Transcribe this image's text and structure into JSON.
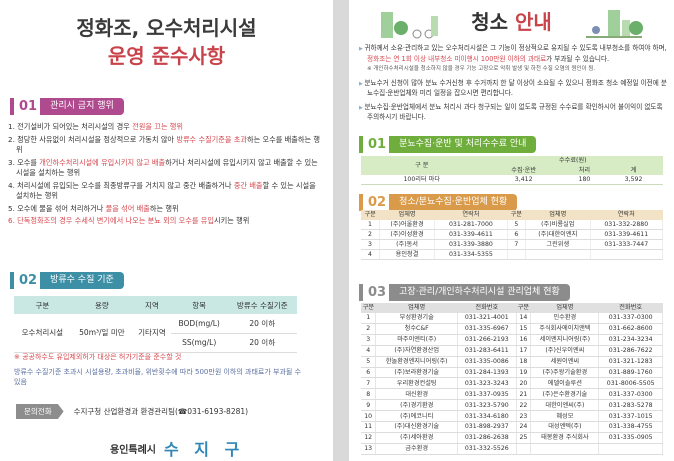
{
  "left": {
    "title_line1": "정화조, 오수처리시설",
    "title_line2": "운영 준수사항",
    "section1": {
      "num": "01",
      "label": "관리시 금지 행위",
      "color": "#b04a8f",
      "items": [
        [
          {
            "t": "1. 전기설비가 되어있는 처리시설의 경우 "
          },
          {
            "t": "전원을 끄는 행위",
            "red": true
          }
        ],
        [
          {
            "t": "2. 정당한 사유없이 처리시설을 정상적으로 가동치 않아 "
          },
          {
            "t": "방류수 수질기준을 초과",
            "red": true
          },
          {
            "t": "하는 오수를 배출하는 행위"
          }
        ],
        [
          {
            "t": "3. 오수를 "
          },
          {
            "t": "개인하수처리시설에 유입시키지 않고 배출",
            "red": true
          },
          {
            "t": "하거나 처리시설에 유입시키지 않고 배출할 수 있는 시설을 설치하는 행위"
          }
        ],
        [
          {
            "t": "4. 처리시설에 유입되는 오수를 최종방류구를 거치지 않고 중간 배출하거나 "
          },
          {
            "t": "중간 배출",
            "red": true
          },
          {
            "t": "할 수 있는 시설을 설치하는 행위"
          }
        ],
        [
          {
            "t": "5. 오수에 물을 섞어 처리하거나 "
          },
          {
            "t": "물을 섞어 배출",
            "red": true
          },
          {
            "t": "하는 행위"
          }
        ],
        [
          {
            "t": "6. 단독정화조의 경우 수세식 변기에서 나오는 분뇨 외의 오수를 유입",
            "red": true
          },
          {
            "t": "시키는 행위"
          }
        ]
      ]
    },
    "section2": {
      "num": "02",
      "label": "방류수 수질 기준",
      "color": "#3d8fa6",
      "headers": [
        "구분",
        "용량",
        "지역",
        "항목",
        "방류수 수질기준"
      ],
      "facility": "오수처리시설",
      "capacity": "50m³/일 미만",
      "region": "기타지역",
      "rows": [
        [
          "BOD(mg/L)",
          "20 이하"
        ],
        [
          "SS(mg/L)",
          "20 이하"
        ]
      ]
    },
    "note1": "※ 공공하수도 유입제외허가 대상은 허가기준을 준수할 것",
    "note2": "방류수 수질기준 초과시 시설용량, 초과비율, 위반횟수에 따라 500만원 이하의 과태료가 부과될 수 있음",
    "contact_label": "문의전화",
    "contact_text": "수지구청 산업환경과 환경관리팀(☎031-6193-8281)",
    "logo_city": "용인특례시",
    "logo_district": "수 지 구"
  },
  "right": {
    "title_a": "청소",
    "title_b": "안내",
    "bullets": [
      {
        "pre": "귀하께서 소유·관리하고 있는 오수처리시설은 그 기능이 정상적으로 유지될 수 있도록 내부청소를 하여야 하며, ",
        "red": "정화조는 연 1회 이상 내부청소 미이행시 100만원 이하의 과태료",
        "post": "가 부과될 수 있습니다.",
        "sub": "※ 개인하수처리시설을 청소하지 않을 경우 기능 고장으로 악취 발생 및 하천 수질 오염의 원인이 됨."
      },
      {
        "pre": "분뇨수거 신청이 많아 분뇨 수거신청 후 수거까지 한 달 이상이 소요될 수 있으니 정화조 청소 예정일 이전에 분뇨수집·운반업체와 미리 일정을 잡으시면 편리합니다."
      },
      {
        "pre": "분뇨수집·운반업체에서 분뇨 처리시 과다 청구되는 일이 없도록 규정된 수수료를 확인하시어 불이익이 없도록 주의하시기 바랍니다."
      }
    ],
    "s1": {
      "num": "01",
      "label": "분뇨수집·운반 및 처리수수료 안내",
      "color": "#6fae3c",
      "h_type": "구 분",
      "h_fee": "수수료(원)",
      "h_sub": [
        "수집·운반",
        "처리",
        "계"
      ],
      "row": [
        "100리터 마다",
        "3,412",
        "180",
        "3,592"
      ]
    },
    "s2": {
      "num": "02",
      "label": "청소/분뇨수집·운반업체 현황",
      "color": "#d99a4a",
      "headers": [
        "구분",
        "업체명",
        "연락처",
        "구분",
        "업체명",
        "연락처"
      ],
      "rows": [
        [
          "1",
          "(주)어울환경",
          "031-281-7000",
          "5",
          "(주)비룡실업",
          "031-332-2880"
        ],
        [
          "2",
          "(주)이성환경",
          "031-339-4611",
          "6",
          "(주)대한이엔지",
          "031-339-4611"
        ],
        [
          "3",
          "(주)동서",
          "031-339-3880",
          "7",
          "그린위생",
          "031-333-7447"
        ],
        [
          "4",
          "용인청결",
          "031-334-5355",
          "",
          "",
          ""
        ]
      ]
    },
    "s3": {
      "num": "03",
      "label": "고장·관리/개인하수처리시설 관리업체 현황",
      "color": "#8c8c8c",
      "headers": [
        "구분",
        "업체명",
        "전화번호",
        "구분",
        "업체명",
        "전화번호"
      ],
      "rows": [
        [
          "1",
          "부성환경기술",
          "031-321-4001",
          "14",
          "인수환경",
          "031-337-0300"
        ],
        [
          "2",
          "청수C&F",
          "031-335-6967",
          "15",
          "주식회사에이치앤텍",
          "031-662-8600"
        ],
        [
          "3",
          "마주이엔티(주)",
          "031-266-2193",
          "16",
          "세이엔지니어링(주)",
          "031-234-3234"
        ],
        [
          "4",
          "(주)자연환경산업",
          "031-283-6411",
          "17",
          "(주)신우이엔씨",
          "031-286-7622"
        ],
        [
          "5",
          "한놀환경엔지니어링(주)",
          "031-335-0086",
          "18",
          "세원이엔씨",
          "031-321-1283"
        ],
        [
          "6",
          "(주)보라환경기술",
          "031-284-1393",
          "19",
          "(주)주왕기술환경",
          "031-889-1760"
        ],
        [
          "7",
          "우리환경컨설팅",
          "031-323-3243",
          "20",
          "에델이솔루션",
          "031-8006-5505"
        ],
        [
          "8",
          "대신환경",
          "031-337-0935",
          "21",
          "(주)은수환경기술",
          "031-337-0300"
        ],
        [
          "9",
          "(주)경기환경",
          "031-323-5790",
          "22",
          "대한이엔씨(주)",
          "031-283-5278"
        ],
        [
          "10",
          "(주)에코니티",
          "031-334-6180",
          "23",
          "혜성모",
          "031-337-1015"
        ],
        [
          "11",
          "(주)대신환경기술",
          "031-898-2937",
          "24",
          "대성엔텍(주)",
          "031-338-4755"
        ],
        [
          "12",
          "(주)세아환경",
          "031-286-2638",
          "25",
          "태봉환경 주식회사",
          "031-335-0905"
        ],
        [
          "13",
          "금수환경",
          "031-332-5526",
          "",
          "",
          ""
        ]
      ]
    }
  }
}
